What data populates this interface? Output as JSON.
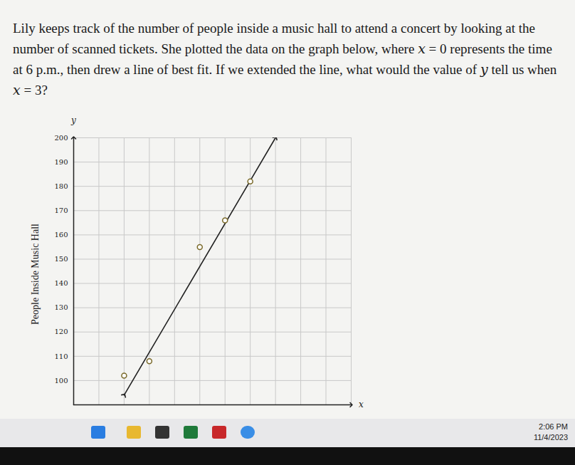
{
  "question": "Lily keeps track of the number of people inside a music hall to attend a concert by looking at the number of scanned tickets. She plotted the data on the graph below, where x = 0 represents the time at 6 p.m., then drew a line of best fit. If we extended the line, what would the value of y tell us when x = 3?",
  "chart_data": {
    "type": "scatter",
    "xlabel": "x",
    "ylabel": "People Inside Music Hall",
    "y_symbol": "y",
    "x": [
      2,
      3,
      5,
      6,
      7
    ],
    "values": [
      102,
      108,
      155,
      166,
      182
    ],
    "color": "#7a6a2a",
    "marker": "circle",
    "line_of_best_fit": {
      "x": [
        2,
        8
      ],
      "values": [
        94,
        200
      ],
      "color": "#222222"
    },
    "xlim": [
      0,
      11
    ],
    "ylim": [
      90,
      200
    ],
    "xticks": [
      0,
      1,
      2,
      3,
      4,
      5,
      6,
      7,
      8,
      9,
      10,
      11
    ],
    "yticks": [
      100,
      110,
      120,
      130,
      140,
      150,
      160,
      170,
      180,
      190,
      200
    ],
    "grid": true,
    "tick_labels": "y"
  },
  "taskbar": {
    "time": "2:06 PM",
    "date": "11/4/2023"
  }
}
